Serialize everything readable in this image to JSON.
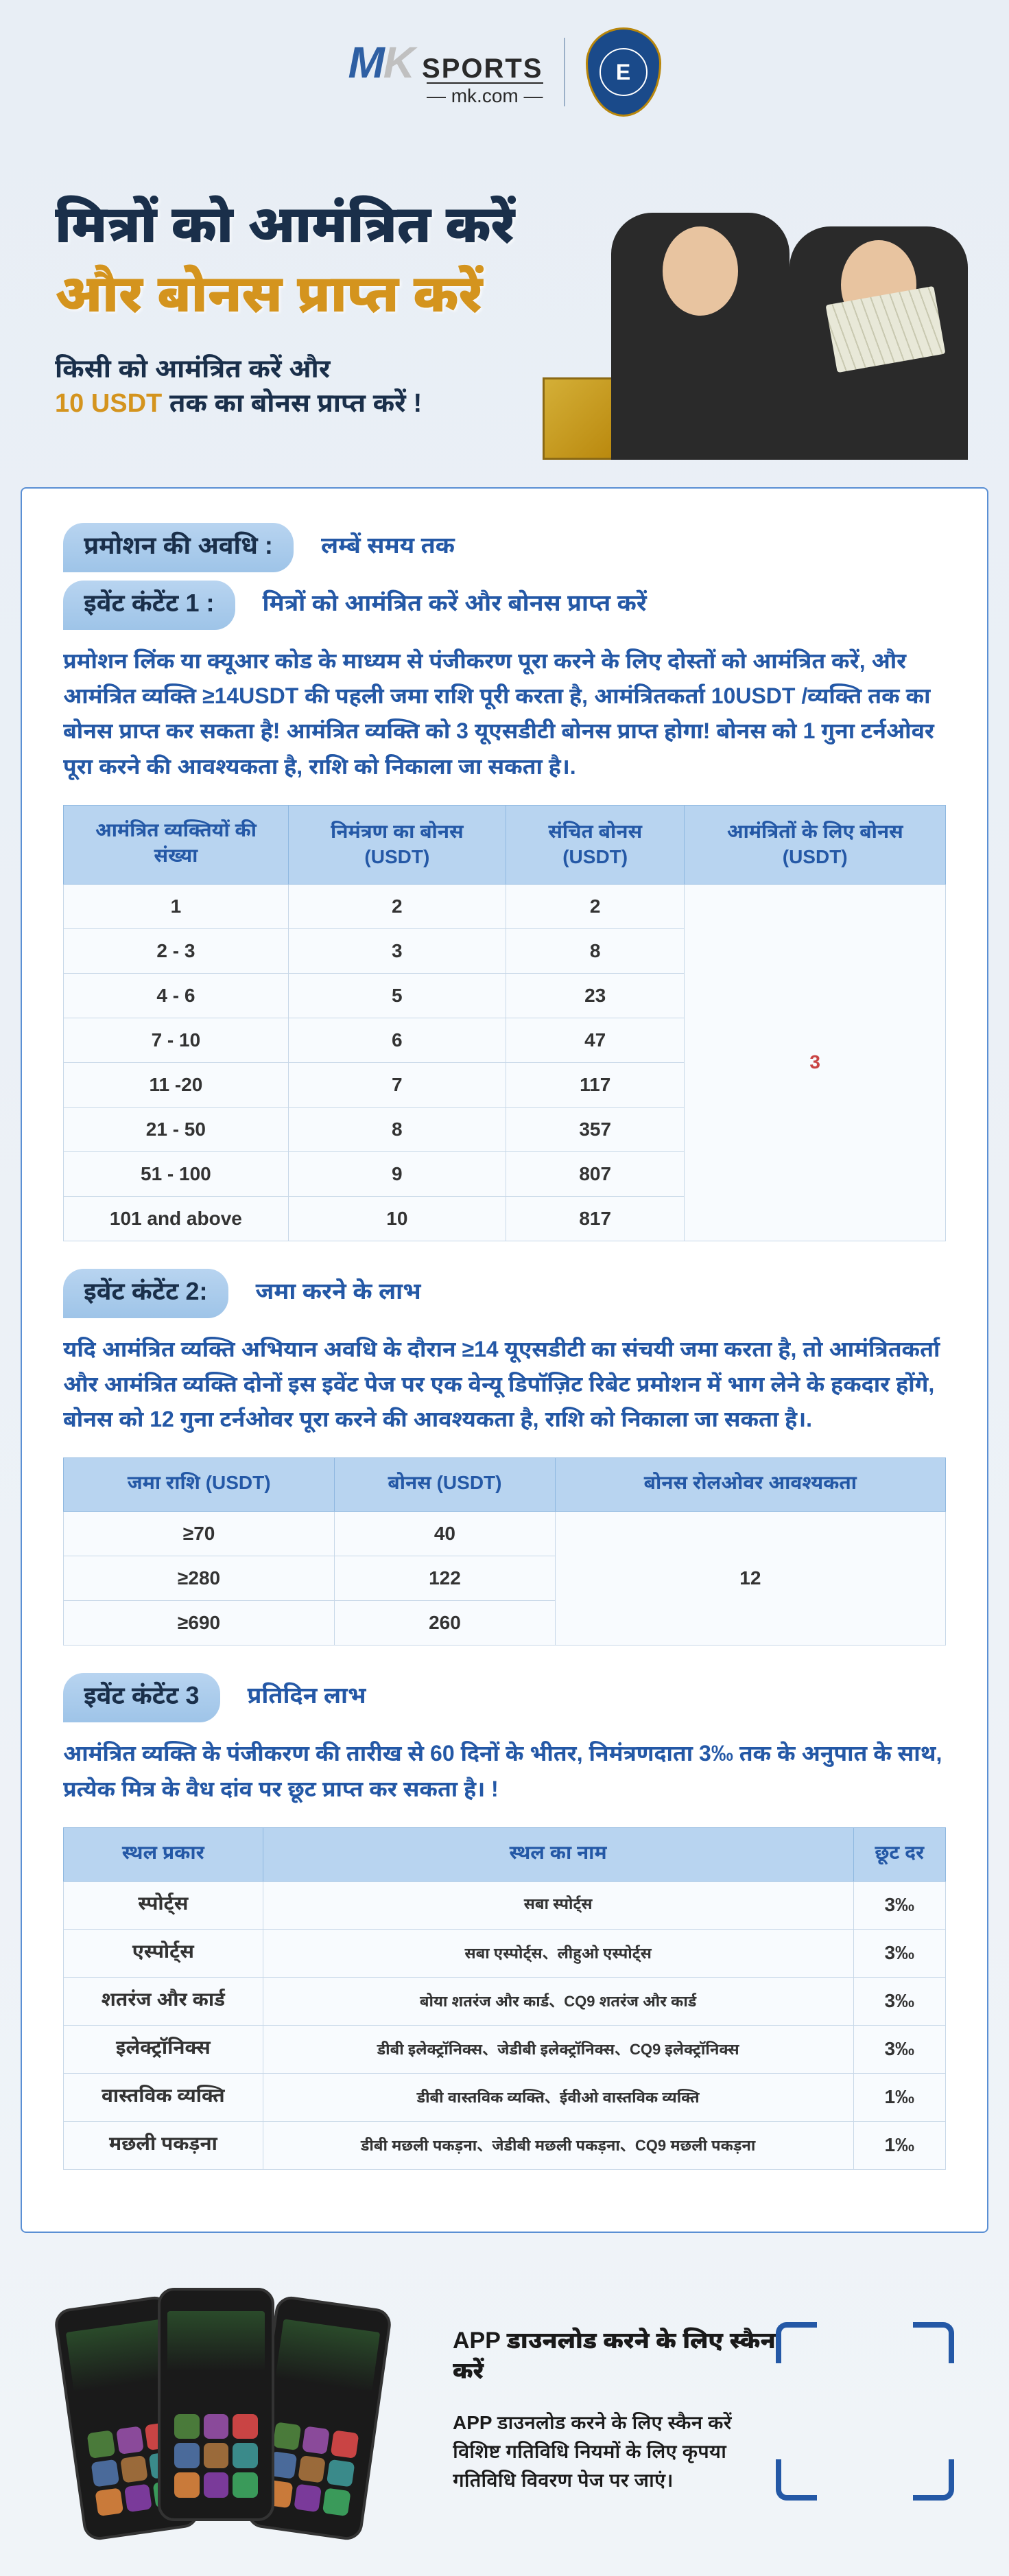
{
  "header": {
    "logo_m": "M",
    "logo_k": "K",
    "logo_sports": "SPORTS",
    "logo_sub": "— mk.com —",
    "crest_label": "E"
  },
  "hero": {
    "line1": "मित्रों को आमंत्रित करें",
    "line2": "और बोनस प्राप्त करें",
    "sub1": "किसी को आमंत्रित करें और",
    "sub2_pre": "",
    "sub2_usdt": "10 USDT",
    "sub2_post": " तक का बोनस प्राप्त करें !"
  },
  "section1": {
    "badge": "प्रमोशन की अवधि :",
    "text": "लम्बें समय तक"
  },
  "section2": {
    "badge": "इवेंट कंटेंट 1 :",
    "text": "मित्रों को आमंत्रित करें और बोनस प्राप्त करें"
  },
  "para1": "प्रमोशन लिंक या क्यूआर कोड के माध्यम से पंजीकरण पूरा करने के लिए दोस्तों को आमंत्रित करें, और आमंत्रित व्यक्ति ≥14USDT की पहली जमा राशि पूरी करता है, आमंत्रितकर्ता 10USDT /व्यक्ति तक का बोनस प्राप्त कर सकता है! आमंत्रित व्यक्ति को 3 यूएसडीटी बोनस प्राप्त होगा! बोनस को 1 गुना टर्नओवर पूरा करने की आवश्यकता है, राशि को निकाला जा सकता है।.",
  "table1": {
    "headers": [
      "आमंत्रित व्यक्तियों की संख्या",
      "निमंत्रण का बोनस  (USDT)",
      "संचित बोनस  (USDT)",
      "आमंत्रितों के लिए बोनस  (USDT)"
    ],
    "rows": [
      {
        "c0": "1",
        "c1": "2",
        "c2": "2"
      },
      {
        "c0": "2 - 3",
        "c1": "3",
        "c2": "8"
      },
      {
        "c0": "4 - 6",
        "c1": "5",
        "c2": "23"
      },
      {
        "c0": "7 - 10",
        "c1": "6",
        "c2": "47"
      },
      {
        "c0": "11 -20",
        "c1": "7",
        "c2": "117"
      },
      {
        "c0": "21 - 50",
        "c1": "8",
        "c2": "357"
      },
      {
        "c0": "51 - 100",
        "c1": "9",
        "c2": "807"
      },
      {
        "c0": "101 and above",
        "c1": "10",
        "c2": "817"
      }
    ],
    "merged_col": "3"
  },
  "section3": {
    "badge": "इवेंट कंटेंट 2:",
    "text": "जमा करने के लाभ"
  },
  "para2": "यदि आमंत्रित व्यक्ति अभियान अवधि के दौरान ≥14 यूएसडीटी का संचयी जमा करता है, तो आमंत्रितकर्ता और आमंत्रित व्यक्ति दोनों इस इवेंट पेज पर एक वेन्यू डिपॉज़िट रिबेट प्रमोशन में भाग लेने के हकदार होंगे, बोनस को 12 गुना टर्नओवर पूरा करने की आवश्यकता है, राशि को निकाला जा सकता है।.",
  "table2": {
    "headers": [
      "जमा राशि  (USDT)",
      "बोनस  (USDT)",
      "बोनस रोलओवर आवश्यकता"
    ],
    "rows": [
      {
        "c0": "≥70",
        "c1": "40"
      },
      {
        "c0": "≥280",
        "c1": "122"
      },
      {
        "c0": "≥690",
        "c1": "260"
      }
    ],
    "merged_col": "12"
  },
  "section4": {
    "badge": "इवेंट कंटेंट 3",
    "text": "प्रतिदिन लाभ"
  },
  "para3": "आमंत्रित व्यक्ति के पंजीकरण की तारीख से 60 दिनों के भीतर, निमंत्रणदाता 3‰ तक के अनुपात के साथ, प्रत्येक मित्र के वैध दांव पर छूट प्राप्त कर सकता है। !",
  "table3": {
    "headers": [
      "स्थल प्रकार",
      "स्थल का नाम",
      "छूट दर"
    ],
    "rows": [
      {
        "c0": "स्पोर्ट्स",
        "c1": "सबा स्पोर्ट्स",
        "c2": "3‰"
      },
      {
        "c0": "एस्पोर्ट्स",
        "c1": "सबा एस्पोर्ट्स、लीहुओ एस्पोर्ट्स",
        "c2": "3‰"
      },
      {
        "c0": "शतरंज और कार्ड",
        "c1": "बोया शतरंज और कार्ड、CQ9 शतरंज और कार्ड",
        "c2": "3‰"
      },
      {
        "c0": "इलेक्ट्रॉनिक्स",
        "c1": "डीबी इलेक्ट्रॉनिक्स、जेडीबी इलेक्ट्रॉनिक्स、CQ9 इलेक्ट्रॉनिक्स",
        "c2": "3‰"
      },
      {
        "c0": "वास्तविक व्यक्ति",
        "c1": "डीबी वास्तविक व्यक्ति、ईवीओ वास्तविक व्यक्ति",
        "c2": "1‰"
      },
      {
        "c0": "मछली पकड़ना",
        "c1": "डीबी मछली पकड़ना、जेडीबी मछली पकड़ना、CQ9 मछली पकड़ना",
        "c2": "1‰"
      }
    ]
  },
  "footer": {
    "title": "APP  डाउनलोड करने के लिए स्कैन करें",
    "sub1": "APP  डाउनलोड करने के लिए स्कैन करें",
    "sub2": "विशिष्ट गतिविधि नियमों के लिए कृपया गतिविधि विवरण पेज पर जाएं।"
  },
  "colors": {
    "accent": "#2458a6",
    "gold": "#d4941e",
    "badge_bg": "#b8d4f0",
    "red": "#c94444"
  },
  "app_colors": [
    "#4a7a3a",
    "#8a4a9a",
    "#c94444",
    "#4a6a9a",
    "#9a6a3a",
    "#3a8a8a",
    "#c97a3a",
    "#7a3a9a",
    "#3a9a5a"
  ]
}
